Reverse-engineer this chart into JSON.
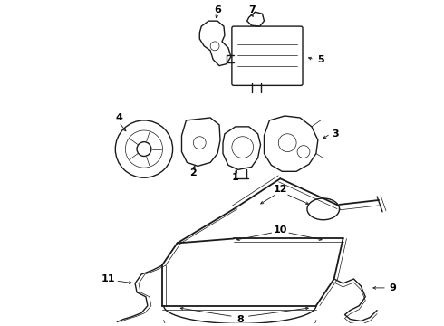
{
  "bg_color": "#ffffff",
  "line_color": "#1a1a1a",
  "label_color": "#000000",
  "label_fs": 8.0,
  "lw_part": 1.0,
  "lw_hose": 1.3,
  "lw_thin": 0.5,
  "lw_leader": 0.6
}
